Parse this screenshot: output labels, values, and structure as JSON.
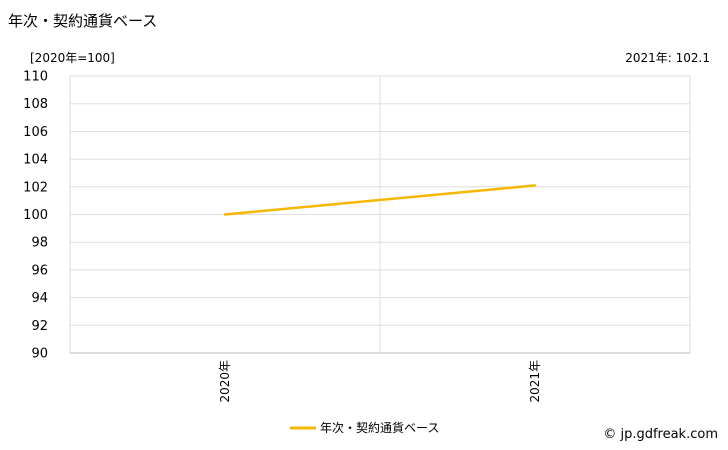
{
  "header": {
    "title": "年次・契約通貨ベース",
    "unit_label": "[2020年=100]",
    "latest_value": "2021年: 102.1"
  },
  "footer": {
    "credit": "© jp.gdfreak.com"
  },
  "colors": {
    "series": "#f5b800",
    "grid": "#dddddd",
    "axis": "#bbbbbb"
  },
  "chart_data": {
    "type": "line",
    "title": "年次・契約通貨ベース",
    "xlabel": "",
    "ylabel": "[2020年=100]",
    "categories": [
      "2020年",
      "2021年"
    ],
    "series": [
      {
        "name": "年次・契約通貨ベース",
        "values": [
          100.0,
          102.1
        ]
      }
    ],
    "ylim": [
      90,
      110
    ],
    "yticks": [
      "90",
      "92",
      "94",
      "96",
      "98",
      "100",
      "102",
      "104",
      "106",
      "108",
      "110"
    ],
    "grid": true,
    "legend": "bottom-center"
  }
}
